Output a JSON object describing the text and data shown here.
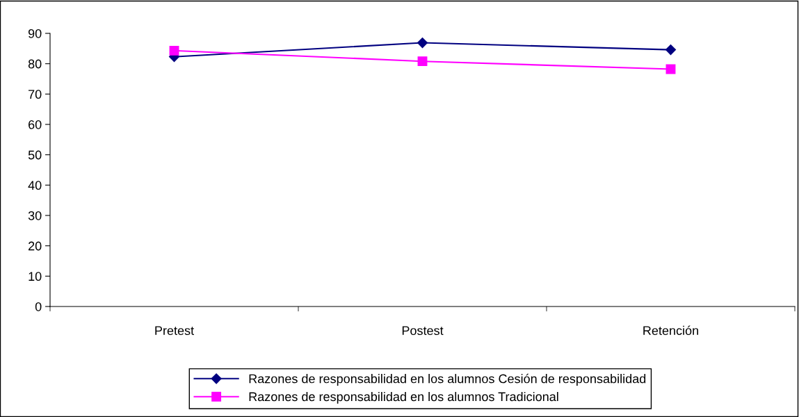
{
  "chart_data": {
    "type": "line",
    "categories": [
      "Pretest",
      "Postest",
      "Retención"
    ],
    "series": [
      {
        "name": "Razones de responsabilidad en los alumnos Cesión de responsabilidad",
        "color": "#000080",
        "marker": "diamond",
        "values": [
          82.3,
          86.9,
          84.6
        ]
      },
      {
        "name": "Razones de responsabilidad en los alumnos Tradicional",
        "color": "#ff00ff",
        "marker": "square",
        "values": [
          84.3,
          80.8,
          78.2
        ]
      }
    ],
    "ylim": [
      0,
      90
    ],
    "yticks": [
      0,
      10,
      20,
      30,
      40,
      50,
      60,
      70,
      80,
      90
    ],
    "grid": false,
    "legend": "bottom",
    "line_style": "solid"
  }
}
